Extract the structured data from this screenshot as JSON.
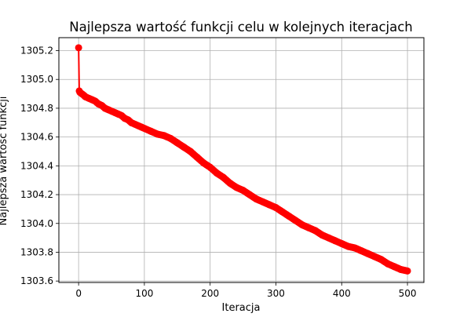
{
  "chart_data": {
    "type": "line",
    "title": "Najlepsza wartość funkcji celu w kolejnych iteracjach",
    "xlabel": "Iteracja",
    "ylabel": "Najlepsza wartość funkcji",
    "xlim": [
      -30,
      525
    ],
    "ylim": [
      1303.59,
      1305.29
    ],
    "grid": true,
    "series_color": "#ff0000",
    "marker": "circle",
    "x_ticks": [
      {
        "value": 0,
        "label": "0"
      },
      {
        "value": 100,
        "label": "100"
      },
      {
        "value": 200,
        "label": "200"
      },
      {
        "value": 300,
        "label": "300"
      },
      {
        "value": 400,
        "label": "400"
      },
      {
        "value": 500,
        "label": "500"
      }
    ],
    "y_ticks": [
      {
        "value": 1303.6,
        "label": "1303.6"
      },
      {
        "value": 1303.8,
        "label": "1303.8"
      },
      {
        "value": 1304.0,
        "label": "1304.0"
      },
      {
        "value": 1304.2,
        "label": "1304.2"
      },
      {
        "value": 1304.4,
        "label": "1304.4"
      },
      {
        "value": 1304.6,
        "label": "1304.6"
      },
      {
        "value": 1304.8,
        "label": "1304.8"
      },
      {
        "value": 1305.0,
        "label": "1305.0"
      },
      {
        "value": 1305.2,
        "label": "1305.2"
      }
    ],
    "series": [
      {
        "x": [
          0,
          1,
          2,
          5,
          8,
          10,
          15,
          20,
          25,
          30,
          35,
          40,
          45,
          50,
          55,
          60,
          65,
          70,
          75,
          80,
          85,
          90,
          95,
          100,
          110,
          120,
          130,
          140,
          150,
          160,
          170,
          180,
          190,
          200,
          210,
          220,
          230,
          240,
          250,
          260,
          270,
          280,
          290,
          300,
          310,
          320,
          330,
          340,
          350,
          360,
          370,
          380,
          390,
          400,
          410,
          420,
          430,
          440,
          450,
          460,
          470,
          480,
          490,
          500
        ],
        "y": [
          1305.22,
          1304.92,
          1304.91,
          1304.9,
          1304.89,
          1304.88,
          1304.87,
          1304.86,
          1304.85,
          1304.83,
          1304.82,
          1304.8,
          1304.79,
          1304.78,
          1304.77,
          1304.76,
          1304.75,
          1304.73,
          1304.72,
          1304.7,
          1304.69,
          1304.68,
          1304.67,
          1304.66,
          1304.64,
          1304.62,
          1304.61,
          1304.59,
          1304.56,
          1304.53,
          1304.5,
          1304.46,
          1304.42,
          1304.39,
          1304.35,
          1304.32,
          1304.28,
          1304.25,
          1304.23,
          1304.2,
          1304.17,
          1304.15,
          1304.13,
          1304.11,
          1304.08,
          1304.05,
          1304.02,
          1303.99,
          1303.97,
          1303.95,
          1303.92,
          1303.9,
          1303.88,
          1303.86,
          1303.84,
          1303.83,
          1303.81,
          1303.79,
          1303.77,
          1303.75,
          1303.72,
          1303.7,
          1303.68,
          1303.67
        ]
      }
    ]
  }
}
